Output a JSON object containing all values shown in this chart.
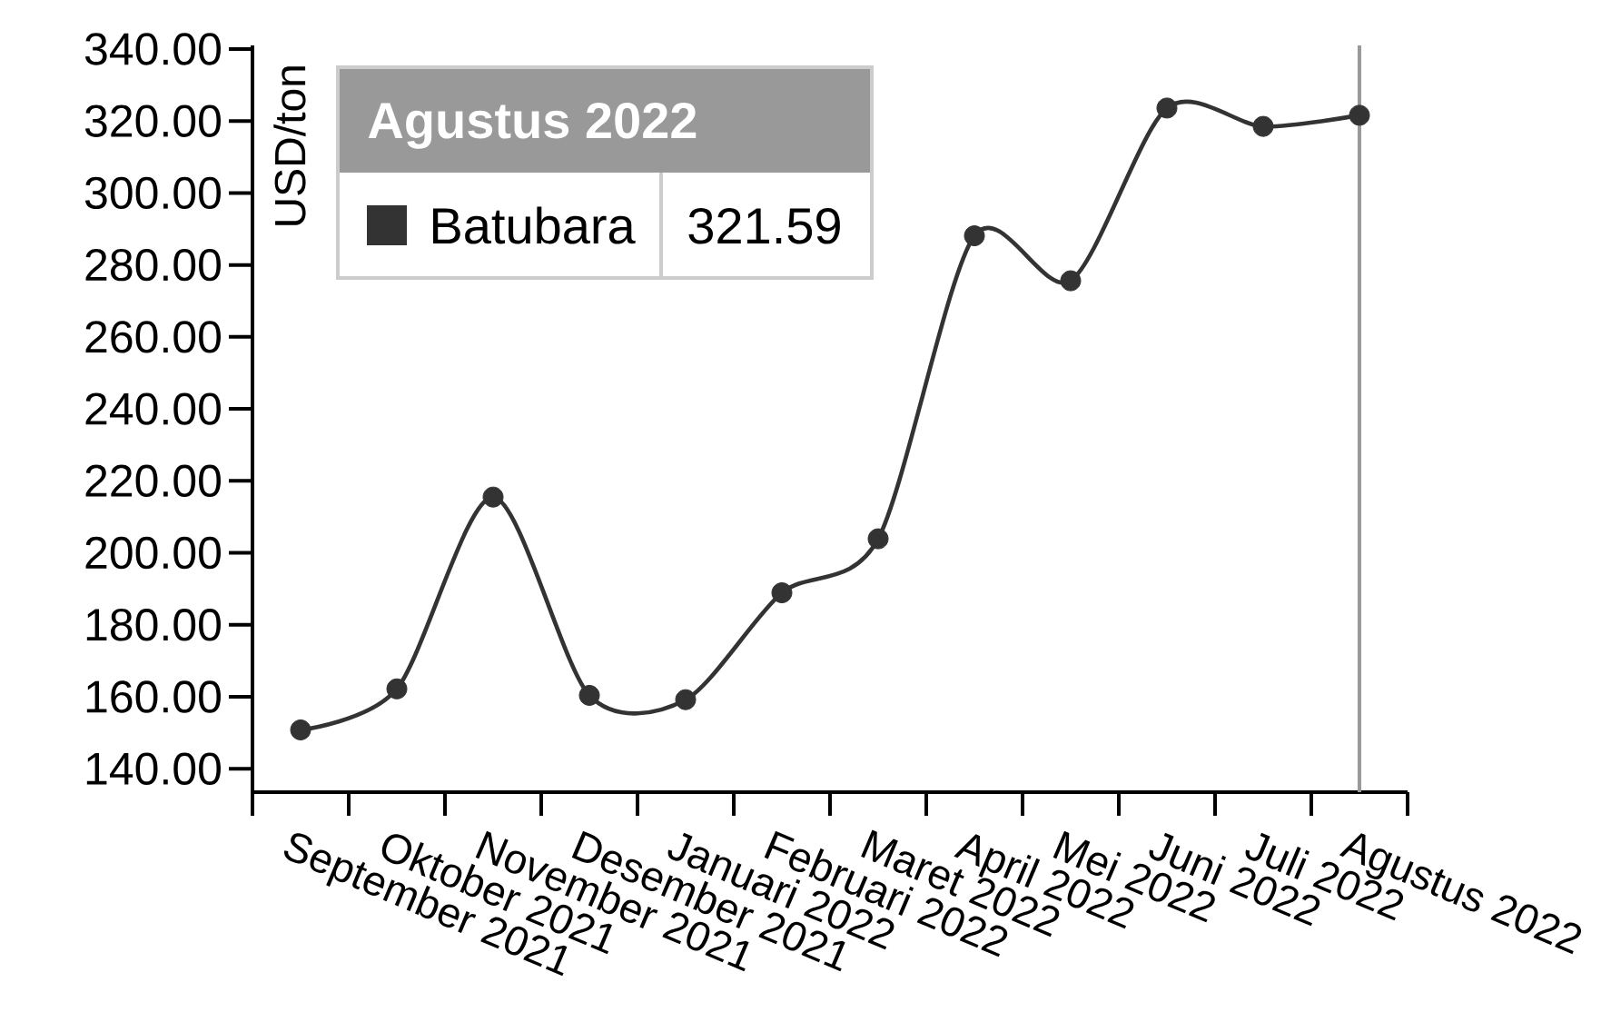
{
  "chart_data": {
    "type": "line",
    "ylabel": "USD/ton",
    "legend_title": "Agustus 2022",
    "categories": [
      "September 2021",
      "Oktober 2021",
      "November 2021",
      "Desember 2021",
      "Januari 2022",
      "Februari 2022",
      "Maret 2022",
      "April 2022",
      "Mei 2022",
      "Juni 2022",
      "Juli 2022",
      "Agustus 2022"
    ],
    "series": [
      {
        "name": "Batubara",
        "color": "#333333",
        "values": [
          150.8,
          162.2,
          215.5,
          160.4,
          159.2,
          188.9,
          203.9,
          288.1,
          275.6,
          323.6,
          318.5,
          321.59
        ]
      }
    ],
    "ylim": [
      133.5,
      341
    ],
    "yticks": [
      {
        "value": 140,
        "label": "140.00"
      },
      {
        "value": 160,
        "label": "160.00"
      },
      {
        "value": 180,
        "label": "180.00"
      },
      {
        "value": 200,
        "label": "200.00"
      },
      {
        "value": 220,
        "label": "220.00"
      },
      {
        "value": 240,
        "label": "240.00"
      },
      {
        "value": 260,
        "label": "260.00"
      },
      {
        "value": 280,
        "label": "280.00"
      },
      {
        "value": 300,
        "label": "300.00"
      },
      {
        "value": 320,
        "label": "320.00"
      },
      {
        "value": 340,
        "label": "340.00"
      }
    ],
    "ref_lines": [
      {
        "axis": "x",
        "value": "Agustus 2022",
        "color": "#999999"
      }
    ],
    "annotations": [
      "321.59"
    ],
    "legend": "top left",
    "marker": "circle",
    "line_style": "solid"
  }
}
